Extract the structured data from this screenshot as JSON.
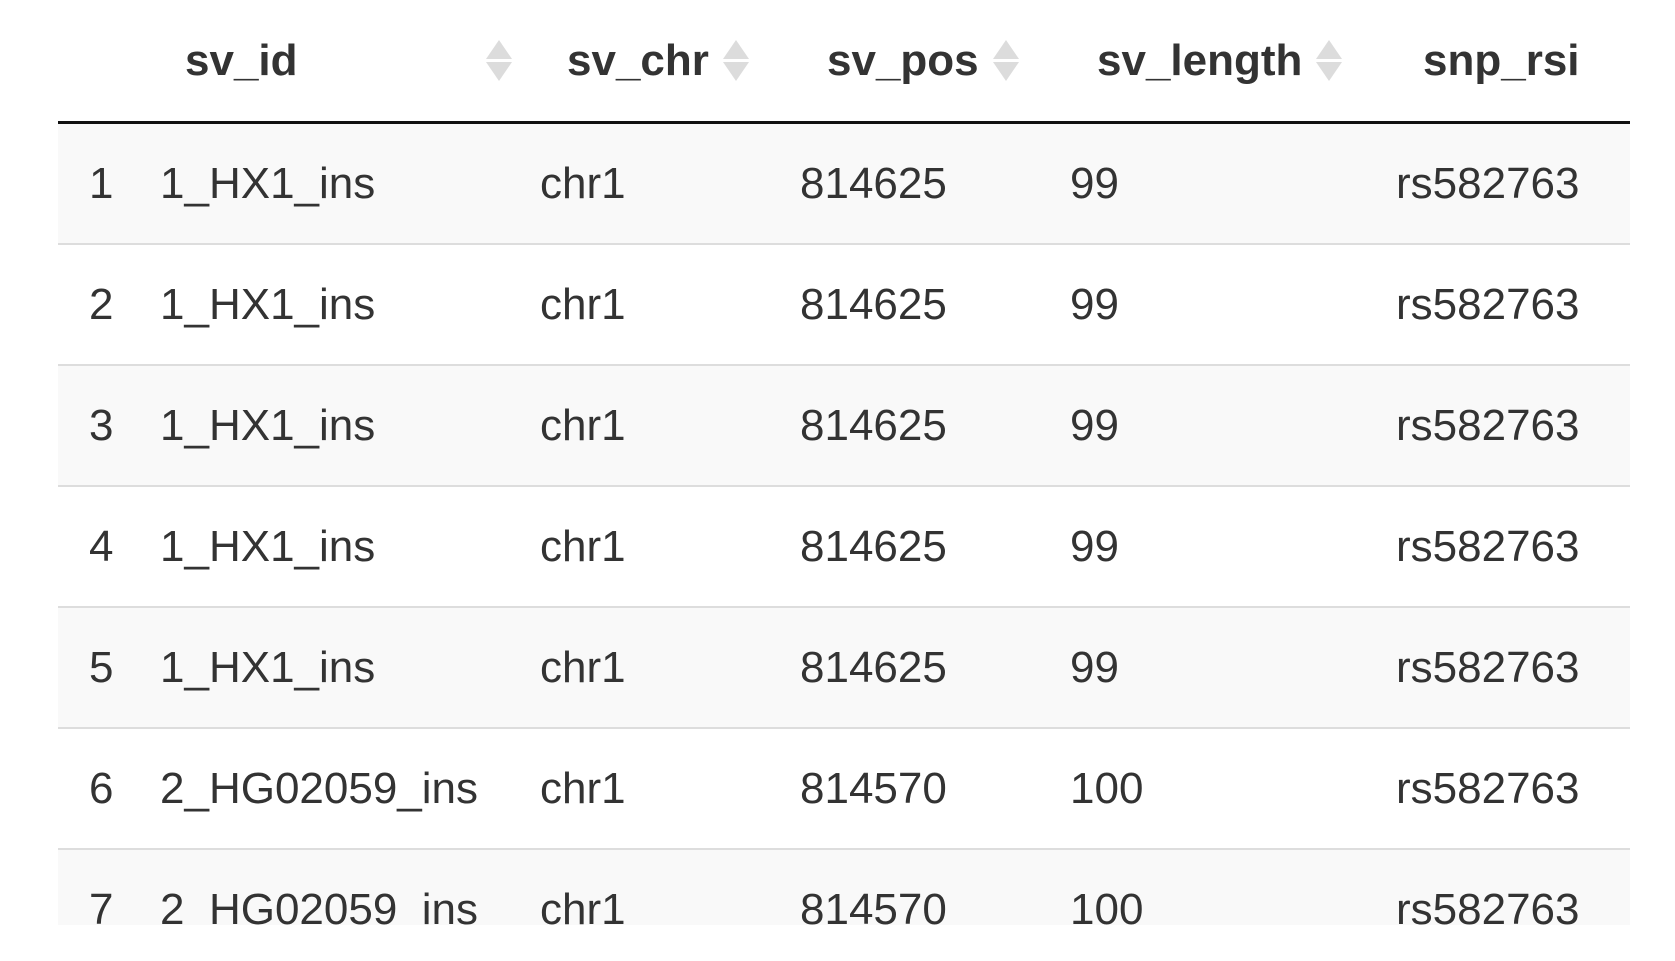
{
  "table": {
    "columns": [
      {
        "key": "idx",
        "label": ""
      },
      {
        "key": "sv_id",
        "label": "sv_id"
      },
      {
        "key": "sv_chr",
        "label": "sv_chr"
      },
      {
        "key": "sv_pos",
        "label": "sv_pos"
      },
      {
        "key": "sv_length",
        "label": "sv_length"
      },
      {
        "key": "snp_rsid",
        "label": "snp_rsi"
      }
    ],
    "rows": [
      {
        "idx": "1",
        "sv_id": "1_HX1_ins",
        "sv_chr": "chr1",
        "sv_pos": "814625",
        "sv_length": "99",
        "snp_rsid": "rs582763"
      },
      {
        "idx": "2",
        "sv_id": "1_HX1_ins",
        "sv_chr": "chr1",
        "sv_pos": "814625",
        "sv_length": "99",
        "snp_rsid": "rs582763"
      },
      {
        "idx": "3",
        "sv_id": "1_HX1_ins",
        "sv_chr": "chr1",
        "sv_pos": "814625",
        "sv_length": "99",
        "snp_rsid": "rs582763"
      },
      {
        "idx": "4",
        "sv_id": "1_HX1_ins",
        "sv_chr": "chr1",
        "sv_pos": "814625",
        "sv_length": "99",
        "snp_rsid": "rs582763"
      },
      {
        "idx": "5",
        "sv_id": "1_HX1_ins",
        "sv_chr": "chr1",
        "sv_pos": "814625",
        "sv_length": "99",
        "snp_rsid": "rs582763"
      },
      {
        "idx": "6",
        "sv_id": "2_HG02059_ins",
        "sv_chr": "chr1",
        "sv_pos": "814570",
        "sv_length": "100",
        "snp_rsid": "rs582763"
      },
      {
        "idx": "7",
        "sv_id": "2_HG02059_ins",
        "sv_chr": "chr1",
        "sv_pos": "814570",
        "sv_length": "100",
        "snp_rsid": "rs582763"
      }
    ]
  },
  "colors": {
    "text": "#333333",
    "header_border": "#111111",
    "row_border": "#dddddd",
    "stripe": "#f9f9f9",
    "sort_icon": "#dcdcdc"
  },
  "icons": {
    "sort": "sort-both-icon"
  }
}
